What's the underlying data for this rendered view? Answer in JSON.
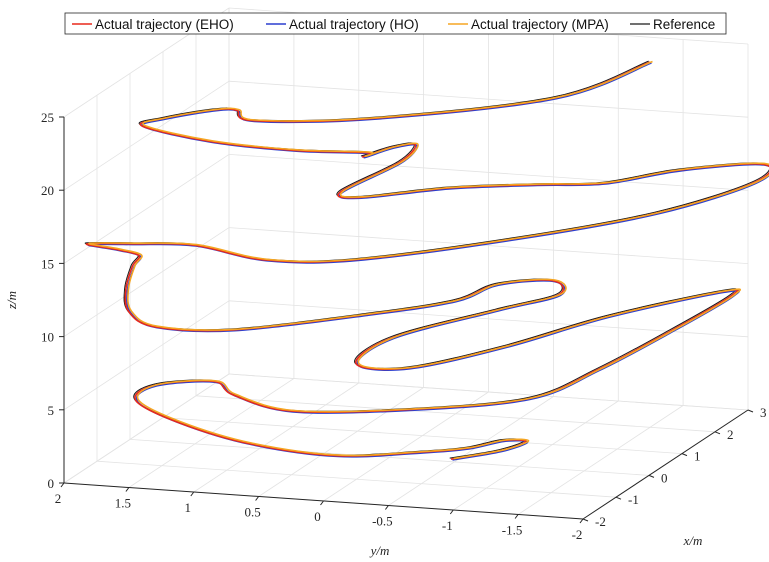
{
  "chart_data": {
    "type": "line3d",
    "title": "",
    "xlabel": "x/m",
    "ylabel": "y/m",
    "zlabel": "z/m",
    "xlim": [
      -2,
      3
    ],
    "ylim": [
      -2,
      2
    ],
    "zlim": [
      0,
      25
    ],
    "x_ticks": [
      "-2",
      "-1",
      "0",
      "1",
      "2",
      "3"
    ],
    "y_ticks": [
      "2",
      "1.5",
      "1",
      "0.5",
      "0",
      "-0.5",
      "-1",
      "-1.5",
      "-2"
    ],
    "z_ticks": [
      "0",
      "5",
      "10",
      "15",
      "20",
      "25"
    ],
    "grid": true,
    "legend_position": "top",
    "series": [
      {
        "name": "Actual trajectory (EHO)",
        "color": "#e8291c"
      },
      {
        "name": "Actual trajectory (HO)",
        "color": "#2b3fcf"
      },
      {
        "name": "Actual trajectory (MPA)",
        "color": "#f5a623"
      },
      {
        "name": "Reference",
        "color": "#1a1a1a"
      }
    ],
    "path": [
      [
        -0.5,
        -0.6,
        1
      ],
      [
        -0.2,
        -0.9,
        1.3
      ],
      [
        0.2,
        -1.0,
        1.4
      ],
      [
        0.3,
        -0.8,
        1.2
      ],
      [
        0.0,
        -0.6,
        1.0
      ],
      [
        -0.6,
        -0.4,
        1.5
      ],
      [
        -1.6,
        0.0,
        2.5
      ],
      [
        -1.9,
        0.6,
        3.4
      ],
      [
        -1.7,
        1.2,
        4.2
      ],
      [
        -1.4,
        1.6,
        5.0
      ],
      [
        -1.2,
        1.5,
        5.8
      ],
      [
        -1.0,
        1.1,
        6.0
      ],
      [
        -1.2,
        0.9,
        5.5
      ],
      [
        -1.4,
        0.4,
        5.0
      ],
      [
        -1.0,
        -0.4,
        5.0
      ],
      [
        -0.5,
        -1.2,
        5.5
      ],
      [
        0.4,
        -1.5,
        6.3
      ],
      [
        1.4,
        -1.8,
        7.6
      ],
      [
        2.1,
        -2.1,
        9.2
      ],
      [
        2.0,
        -2.05,
        9.6
      ],
      [
        0.7,
        -1.5,
        9.5
      ],
      [
        -0.4,
        -1.0,
        8.8
      ],
      [
        -1.4,
        -0.5,
        8.5
      ],
      [
        -1.8,
        -0.2,
        9.2
      ],
      [
        -1.1,
        -0.3,
        10.0
      ],
      [
        0.1,
        -0.8,
        10.4
      ],
      [
        0.8,
        -1.1,
        10.6
      ],
      [
        1.0,
        -1.0,
        11.2
      ],
      [
        0.5,
        -0.7,
        11.5
      ],
      [
        0.0,
        -0.5,
        11.0
      ],
      [
        -0.7,
        0.0,
        10.8
      ],
      [
        -1.6,
        0.8,
        10.6
      ],
      [
        -2.0,
        1.3,
        11.1
      ],
      [
        -2.0,
        1.5,
        12.0
      ],
      [
        -1.7,
        1.6,
        13.0
      ],
      [
        -1.5,
        1.6,
        14.3
      ],
      [
        -1.7,
        1.5,
        15.4
      ],
      [
        -2.0,
        1.6,
        16.2
      ],
      [
        -2.1,
        1.8,
        16.6
      ],
      [
        -1.9,
        1.5,
        16.5
      ],
      [
        -1.6,
        1.1,
        16.2
      ],
      [
        -1.4,
        0.6,
        15.2
      ],
      [
        -1.0,
        0.0,
        15.0
      ],
      [
        0.0,
        -1.0,
        15.6
      ],
      [
        1.0,
        -1.8,
        16.3
      ],
      [
        2.0,
        -2.3,
        17.2
      ],
      [
        2.3,
        -2.3,
        18.0
      ],
      [
        1.7,
        -1.8,
        18.2
      ],
      [
        1.0,
        -1.4,
        18.1
      ],
      [
        0.5,
        -1.0,
        18.5
      ],
      [
        -0.2,
        -0.5,
        19.0
      ],
      [
        -0.9,
        0.0,
        19.1
      ],
      [
        -1.1,
        0.1,
        19.7
      ],
      [
        -0.5,
        -0.2,
        21.0
      ],
      [
        -0.2,
        -0.25,
        21.8
      ],
      [
        -0.3,
        -0.1,
        21.7
      ],
      [
        -0.6,
        0.05,
        21.4
      ],
      [
        -0.3,
        0.1,
        21.2
      ],
      [
        -0.9,
        0.5,
        22.0
      ],
      [
        -1.5,
        1.0,
        23.2
      ],
      [
        -1.6,
        1.5,
        24.1
      ],
      [
        -1.7,
        1.3,
        24.9
      ],
      [
        -1.4,
        1.0,
        25.2
      ],
      [
        -1.1,
        0.9,
        24.8
      ],
      [
        -1.0,
        0.8,
        24.0
      ],
      [
        -0.5,
        0.0,
        23.9
      ],
      [
        0.7,
        -1.1,
        24.2
      ],
      [
        1.6,
        -1.6,
        25.6
      ]
    ]
  }
}
